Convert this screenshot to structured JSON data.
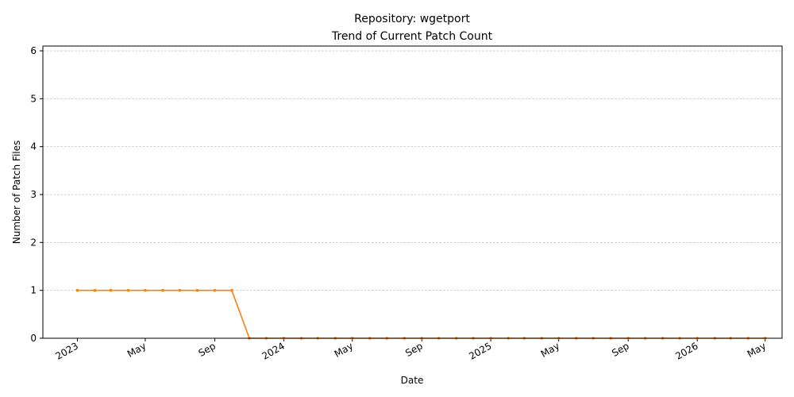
{
  "chart_data": {
    "type": "line",
    "title_line1": "Repository: wgetport",
    "title_line2": "Trend of Current Patch Count",
    "xlabel": "Date",
    "ylabel": "Number of Patch Files",
    "ylim": [
      0,
      6.1
    ],
    "xlim": [
      "2022-11-01",
      "2026-05-31"
    ],
    "grid": "horizontal dashed",
    "line_color": "#ff7f0e",
    "y_ticks": [
      0,
      1,
      2,
      3,
      4,
      5,
      6
    ],
    "x_ticks": [
      {
        "date": "2023-01-01",
        "label": "2023"
      },
      {
        "date": "2023-05-01",
        "label": "May"
      },
      {
        "date": "2023-09-01",
        "label": "Sep"
      },
      {
        "date": "2024-01-01",
        "label": "2024"
      },
      {
        "date": "2024-05-01",
        "label": "May"
      },
      {
        "date": "2024-09-01",
        "label": "Sep"
      },
      {
        "date": "2025-01-01",
        "label": "2025"
      },
      {
        "date": "2025-05-01",
        "label": "May"
      },
      {
        "date": "2025-09-01",
        "label": "Sep"
      },
      {
        "date": "2026-01-01",
        "label": "2026"
      },
      {
        "date": "2026-05-01",
        "label": "May"
      }
    ],
    "series": [
      {
        "x": [
          "2023-01-01",
          "2023-02-01",
          "2023-03-01",
          "2023-04-01",
          "2023-05-01",
          "2023-06-01",
          "2023-07-01",
          "2023-08-01",
          "2023-09-01",
          "2023-10-01",
          "2023-11-01",
          "2023-12-01",
          "2024-01-01",
          "2024-02-01",
          "2024-03-01",
          "2024-04-01",
          "2024-05-01",
          "2024-06-01",
          "2024-07-01",
          "2024-08-01",
          "2024-09-01",
          "2024-10-01",
          "2024-11-01",
          "2024-12-01",
          "2025-01-01",
          "2025-02-01",
          "2025-03-01",
          "2025-04-01",
          "2025-05-01",
          "2025-06-01",
          "2025-07-01",
          "2025-08-01",
          "2025-09-01",
          "2025-10-01",
          "2025-11-01",
          "2025-12-01",
          "2026-01-01",
          "2026-02-01",
          "2026-03-01",
          "2026-04-01",
          "2026-05-01"
        ],
        "y": [
          1,
          1,
          1,
          1,
          1,
          1,
          1,
          1,
          1,
          1,
          0,
          0,
          0,
          0,
          0,
          0,
          0,
          0,
          0,
          0,
          0,
          0,
          0,
          0,
          0,
          0,
          0,
          0,
          0,
          0,
          0,
          0,
          0,
          0,
          0,
          0,
          0,
          0,
          0,
          0,
          0
        ]
      }
    ]
  }
}
